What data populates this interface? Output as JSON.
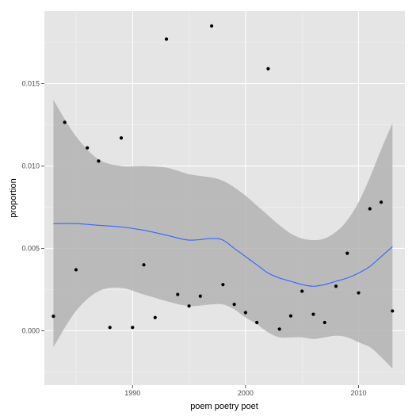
{
  "chart_data": {
    "type": "scatter",
    "xlabel": "poem poetry poet",
    "ylabel": "proportion",
    "xlim": [
      1982.2,
      2014.1
    ],
    "ylim": [
      -0.0033,
      0.0194
    ],
    "x_ticks": [
      1990,
      2000,
      2010
    ],
    "x_tick_labels": [
      "1990",
      "2000",
      "2010"
    ],
    "y_ticks": [
      0.0,
      0.005,
      0.01,
      0.015
    ],
    "y_tick_labels": [
      "0.000",
      "0.005",
      "0.010",
      "0.015"
    ],
    "grid": true,
    "legend": "none",
    "points": {
      "x": [
        1983,
        1984,
        1985,
        1986,
        1987,
        1988,
        1989,
        1990,
        1991,
        1992,
        1993,
        1994,
        1995,
        1996,
        1997,
        1998,
        1999,
        2000,
        2001,
        2002,
        2003,
        2004,
        2005,
        2006,
        2007,
        2008,
        2009,
        2010,
        2011,
        2012,
        2013
      ],
      "y": [
        0.00088,
        0.01265,
        0.0037,
        0.0111,
        0.0103,
        0.0002,
        0.0117,
        0.0002,
        0.004,
        0.0008,
        0.0177,
        0.0022,
        0.0015,
        0.0021,
        0.0185,
        0.0028,
        0.0016,
        0.0011,
        0.0005,
        0.0159,
        0.0001,
        0.0009,
        0.0024,
        0.001,
        0.0005,
        0.0027,
        0.0047,
        0.0023,
        0.0074,
        0.0078,
        0.0012
      ]
    },
    "smooth": {
      "x": [
        1983,
        1985,
        1987,
        1989,
        1991,
        1993,
        1995,
        1997,
        1998,
        1999,
        2000,
        2001,
        2002,
        2003,
        2004,
        2005,
        2006,
        2007,
        2008,
        2009,
        2010,
        2011,
        2012,
        2013
      ],
      "y": [
        0.0065,
        0.0065,
        0.0064,
        0.0063,
        0.0061,
        0.0058,
        0.0055,
        0.0056,
        0.0055,
        0.005,
        0.0045,
        0.004,
        0.0035,
        0.0032,
        0.003,
        0.0028,
        0.0027,
        0.0028,
        0.003,
        0.0032,
        0.0035,
        0.0039,
        0.0045,
        0.0051
      ]
    },
    "band": {
      "x": [
        1983,
        1985,
        1987,
        1989,
        1991,
        1993,
        1995,
        1997,
        1998,
        1999,
        2000,
        2001,
        2002,
        2003,
        2004,
        2005,
        2006,
        2007,
        2008,
        2009,
        2010,
        2011,
        2012,
        2013
      ],
      "upper": [
        0.014,
        0.0118,
        0.0104,
        0.01,
        0.01,
        0.0099,
        0.0095,
        0.0093,
        0.0091,
        0.0087,
        0.0082,
        0.0076,
        0.007,
        0.0064,
        0.0059,
        0.0056,
        0.0055,
        0.0056,
        0.006,
        0.0067,
        0.0078,
        0.0093,
        0.011,
        0.0126
      ],
      "lower": [
        -0.001,
        0.0012,
        0.0024,
        0.0026,
        0.0022,
        0.0018,
        0.0015,
        0.0016,
        0.0016,
        0.0013,
        0.0008,
        0.0004,
        -0.0001,
        -0.0004,
        -0.0004,
        -0.0004,
        -0.0005,
        -0.0004,
        -0.0003,
        -0.0004,
        -0.0007,
        -0.001,
        -0.0016,
        -0.0023
      ]
    },
    "colors": {
      "panel": "#e5e5e5",
      "grid_major": "#ffffff",
      "grid_minor": "#f2f2f2",
      "band": "#b3b3b3",
      "line": "#3366ff",
      "point": "#000000"
    }
  }
}
